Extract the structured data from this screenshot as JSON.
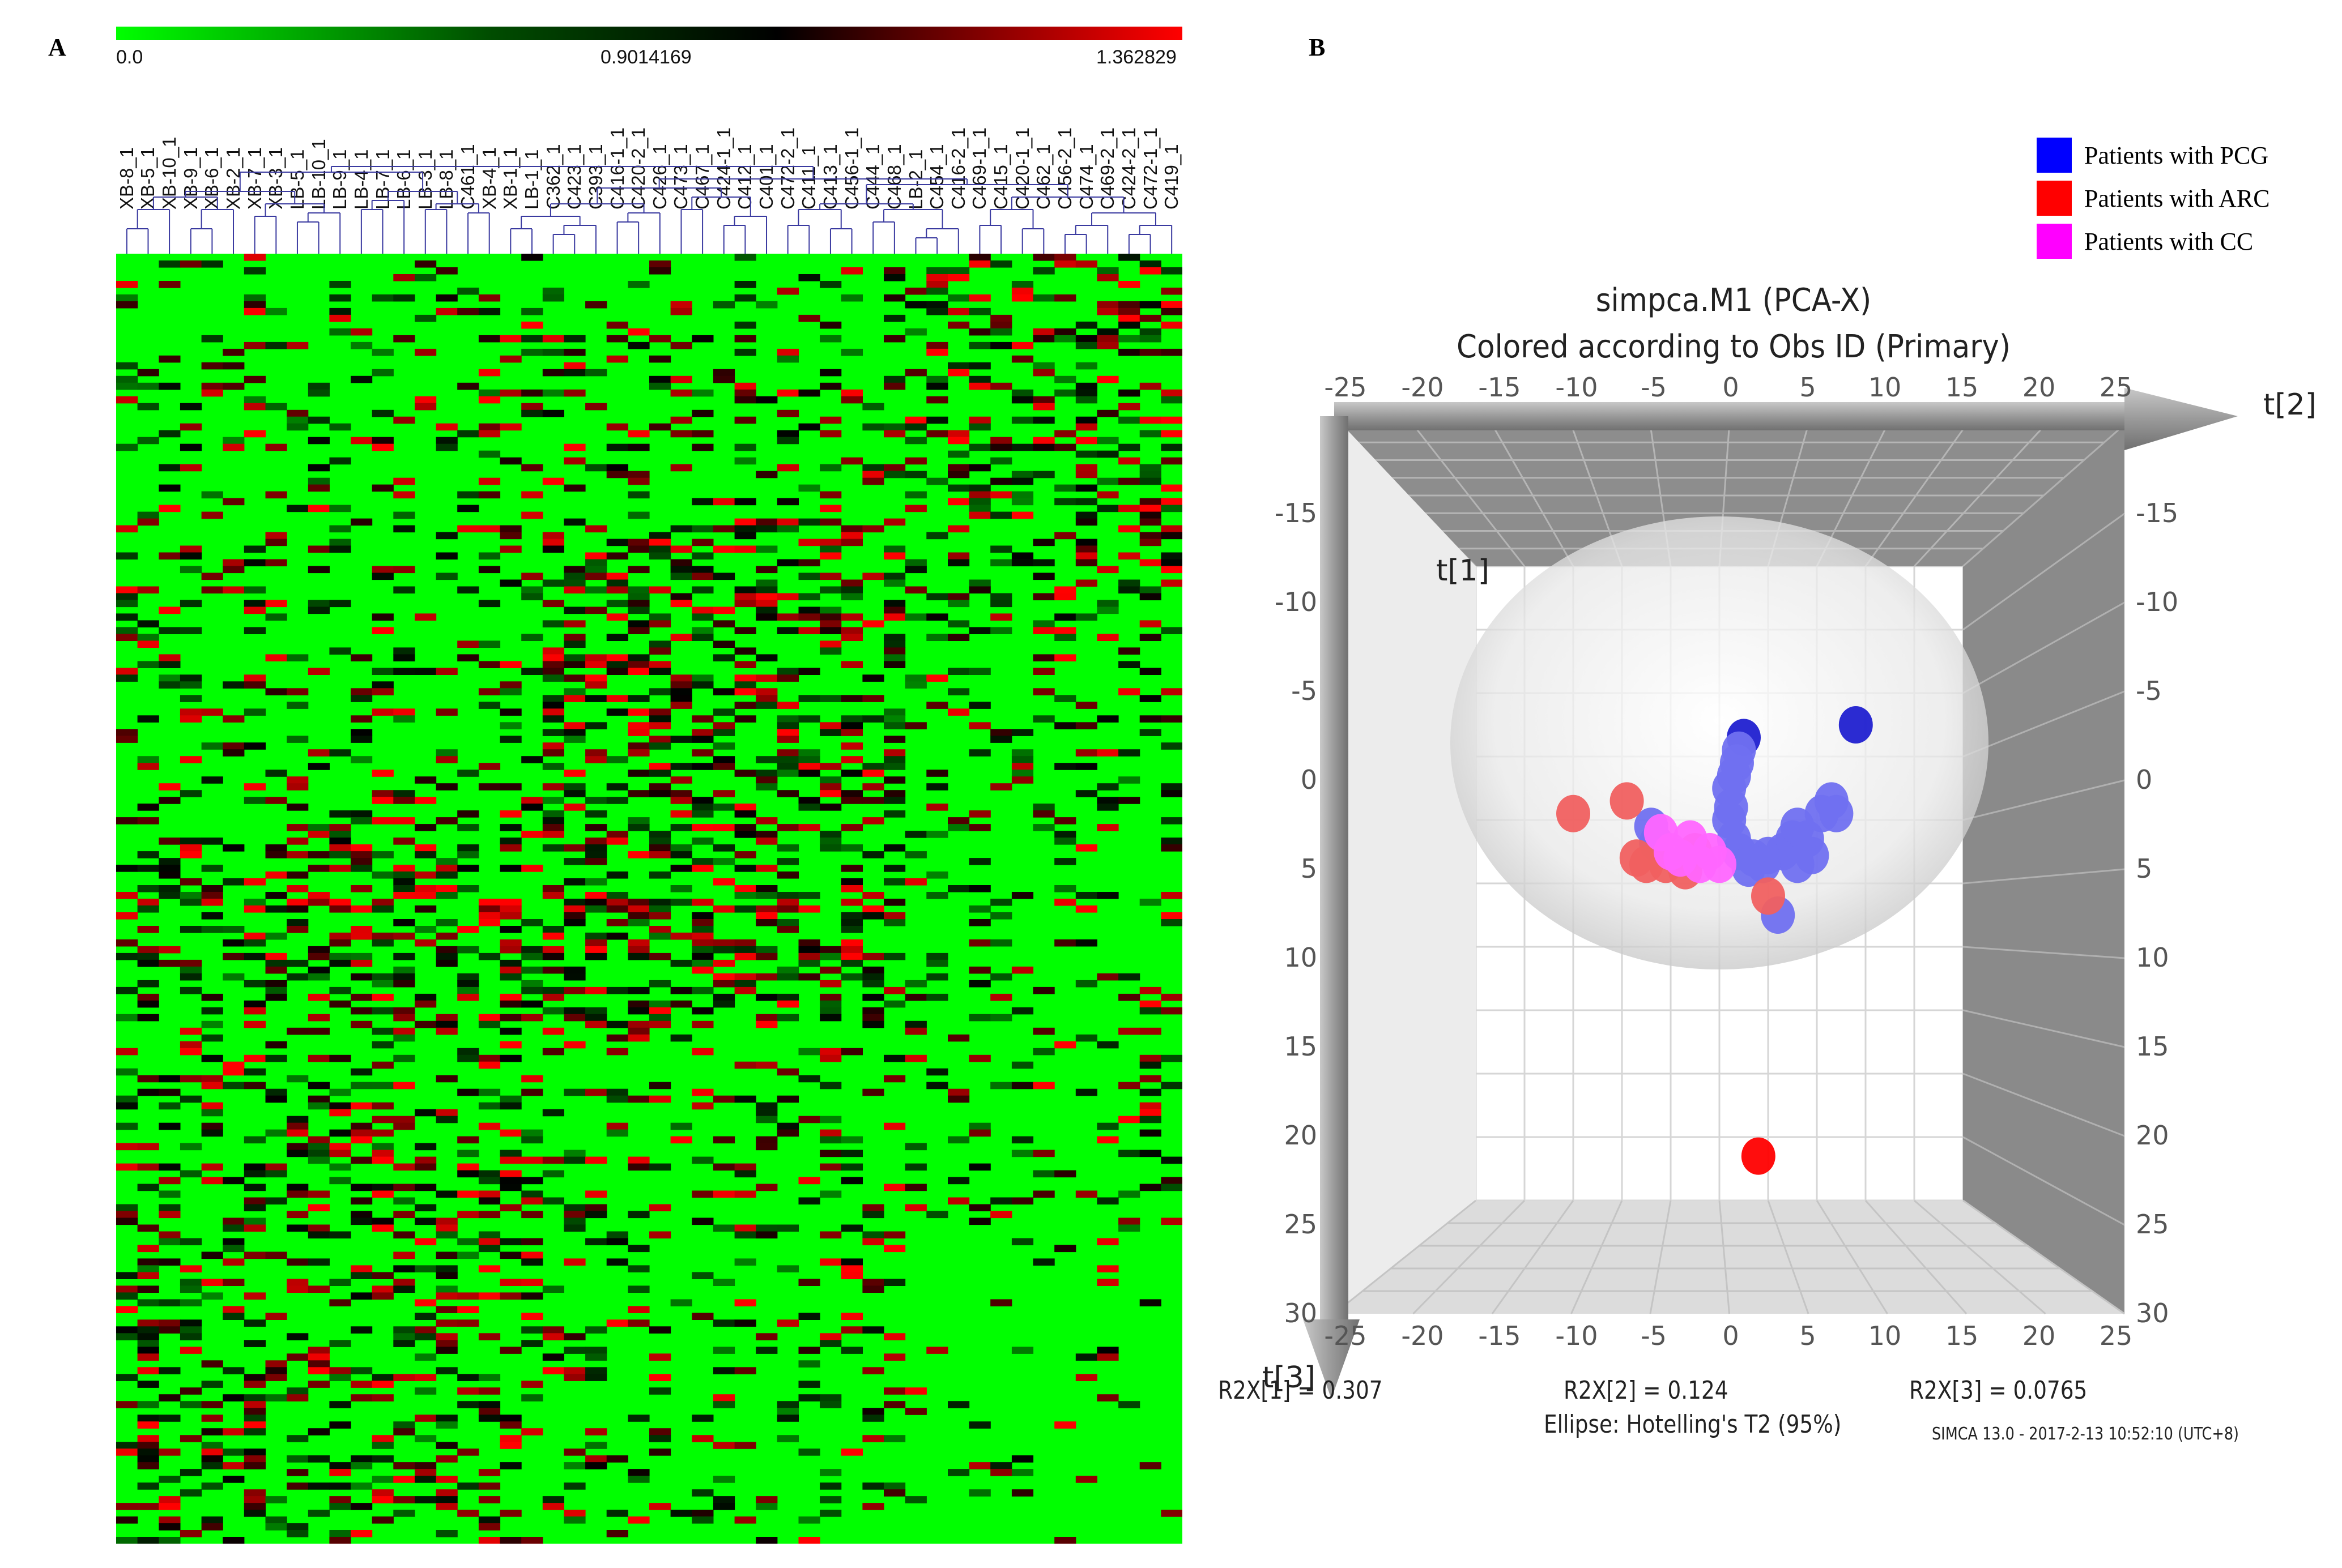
{
  "panel_a": {
    "letter": "A",
    "colorbar": {
      "min_label": "0.0",
      "mid_label": "0.9014169",
      "max_label": "1.362829",
      "colors": {
        "low": "#00ff00",
        "mid": "#000000",
        "high": "#ff0000"
      }
    },
    "column_labels": [
      "XB-8_1",
      "XB-5_1",
      "XB-10_1",
      "XB-9_1",
      "XB-6_1",
      "XB-2_1",
      "XB-7_1",
      "XB-3_1",
      "LB-5_1",
      "LB-10_1",
      "LB-9_1",
      "LB-4_1",
      "LB-7_1",
      "LB-6_1",
      "LB-3_1",
      "LB-8_1",
      "C461_1",
      "XB-4_1",
      "XB-1_1",
      "LB-1_1",
      "C362_1",
      "C423_1",
      "C393_1",
      "C416-1_1",
      "C420-2_1",
      "C426_1",
      "C473_1",
      "C467_1",
      "C424-1_1",
      "C412_1",
      "C401_1",
      "C472-2_1",
      "C411_1",
      "C413_1",
      "C456-1_1",
      "C444_1",
      "C468_1",
      "LB-2_1",
      "C454_1",
      "C416-2_1",
      "C469-1_1",
      "C415_1",
      "C420-1_1",
      "C462_1",
      "C456-2_1",
      "C474_1",
      "C469-2_1",
      "C424-2_1",
      "C472-1_1",
      "C419_1"
    ],
    "dendrogram_color": "#3a3aa0",
    "row_count": 190
  },
  "panel_b": {
    "letter": "B",
    "legend": [
      {
        "label": "Patients with PCG",
        "color": "#0000ff"
      },
      {
        "label": "Patients with ARC",
        "color": "#ff0000"
      },
      {
        "label": "Patients with CC",
        "color": "#ff00ff"
      }
    ],
    "title_line1": "simpca.M1 (PCA-X)",
    "title_line2": "Colored according to Obs ID (Primary)",
    "axis_labels": {
      "t1": "t[1]",
      "t2": "t[2]",
      "t3": "t[3]"
    },
    "stats": {
      "r2x1": "R2X[1] = 0.307",
      "r2x2": "R2X[2] = 0.124",
      "r2x3": "R2X[3] = 0.0765",
      "ellipse": "Ellipse: Hotelling's T2 (95%)",
      "software": "SIMCA 13.0 - 2017-2-13 10:52:10 (UTC+8)"
    }
  },
  "chart_data": [
    {
      "type": "heatmap",
      "title": "",
      "colorbar_range": [
        0.0,
        1.362829
      ],
      "colorbar_ticks": [
        0.0,
        0.9014169,
        1.362829
      ],
      "columns": 50,
      "rows": 190,
      "note": "Hierarchically clustered heatmap; red = high, green = low"
    },
    {
      "type": "scatter",
      "title": "simpca.M1 (PCA-X) — Colored according to Obs ID (Primary)",
      "xlabel": "t[2]",
      "ylabel": "t[3]",
      "zlabel": "t[1]",
      "x_ticks": [
        -25,
        -20,
        -15,
        -10,
        -5,
        0,
        5,
        10,
        15,
        20,
        25
      ],
      "y_ticks": [
        -15,
        -10,
        -5,
        0,
        5,
        10,
        15,
        20,
        25,
        30
      ],
      "xlim": [
        -25,
        25
      ],
      "ylim": [
        -20,
        30
      ],
      "legend_position": "top-right",
      "series": [
        {
          "name": "Patients with PCG",
          "color": "#7070f0",
          "points": [
            [
              2.5,
              -6.5
            ],
            [
              2.0,
              -5.5
            ],
            [
              1.8,
              -4.5
            ],
            [
              1.5,
              -3.5
            ],
            [
              1.0,
              -2.5
            ],
            [
              1.2,
              -1.0
            ],
            [
              1.0,
              0.0
            ],
            [
              1.5,
              1.5
            ],
            [
              2.0,
              2.5
            ],
            [
              3.5,
              3.0
            ],
            [
              5.0,
              2.8
            ],
            [
              6.5,
              2.5
            ],
            [
              7.5,
              1.5
            ],
            [
              8.0,
              0.5
            ],
            [
              9.0,
              1.5
            ],
            [
              9.5,
              2.8
            ],
            [
              8.0,
              3.5
            ],
            [
              4.5,
              3.5
            ],
            [
              3.0,
              3.8
            ],
            [
              11.5,
              -1.5
            ],
            [
              10.5,
              -0.5
            ],
            [
              12.0,
              -0.5
            ],
            [
              6.0,
              7.5
            ],
            [
              -7.0,
              0.5
            ],
            [
              -6.5,
              1.8
            ],
            [
              14.0,
              -7.5
            ]
          ]
        },
        {
          "name": "Patients with ARC",
          "color": "#f06060",
          "points": [
            [
              -15.0,
              -0.5
            ],
            [
              -9.5,
              -1.5
            ],
            [
              -8.5,
              3.0
            ],
            [
              -7.5,
              3.5
            ],
            [
              -5.5,
              3.5
            ],
            [
              -3.5,
              4.0
            ],
            [
              -2.5,
              2.5
            ],
            [
              5.0,
              6.0
            ],
            [
              4.0,
              26.5
            ]
          ]
        },
        {
          "name": "Patients with CC",
          "color": "#ff66ff",
          "points": [
            [
              -6.0,
              1.0
            ],
            [
              -5.0,
              2.5
            ],
            [
              -4.0,
              3.0
            ],
            [
              -2.0,
              3.5
            ],
            [
              -1.0,
              2.5
            ],
            [
              0.0,
              3.5
            ],
            [
              -3.0,
              1.5
            ]
          ]
        }
      ]
    }
  ]
}
